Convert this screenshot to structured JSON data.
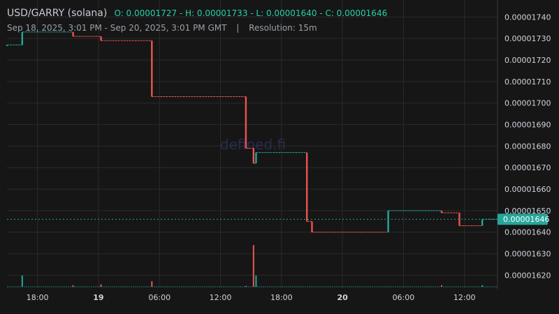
{
  "header": {
    "symbol": "USD/GARRY (solana)",
    "ohlc_text": "O: 0.00001727 - H: 0.00001733 - L: 0.00001640 - C: 0.00001646",
    "range": "Sep 18, 2025, 3:01 PM - Sep 20, 2025, 3:01 PM GMT",
    "separator": "|",
    "resolution": "Resolution: 15m"
  },
  "watermark": "defined.fi",
  "colors": {
    "background": "#161616",
    "grid": "#2b2b2b",
    "up": "#26a69a",
    "down": "#ef5350",
    "price_label_bg": "#26a69a",
    "text": "#d1d4dc"
  },
  "chart_data": {
    "type": "candlestick",
    "y_ticks": [
      "0.00001740",
      "0.00001730",
      "0.00001720",
      "0.00001710",
      "0.00001700",
      "0.00001690",
      "0.00001680",
      "0.00001670",
      "0.00001660",
      "0.00001650",
      "0.00001640",
      "0.00001630",
      "0.00001620"
    ],
    "ylim": [
      1.6143e-05,
      1.7453e-05
    ],
    "x_ticks": [
      {
        "label": "18:00",
        "hour": 18,
        "bold": false
      },
      {
        "label": "19",
        "hour": 24,
        "bold": true
      },
      {
        "label": "06:00",
        "hour": 30,
        "bold": false
      },
      {
        "label": "12:00",
        "hour": 36,
        "bold": false
      },
      {
        "label": "18:00",
        "hour": 42,
        "bold": false
      },
      {
        "label": "20",
        "hour": 48,
        "bold": true
      },
      {
        "label": "06:00",
        "hour": 54,
        "bold": false
      },
      {
        "label": "12:00",
        "hour": 60,
        "bold": false
      }
    ],
    "x_range_hours_from_sep18_midnight": [
      15.0,
      63.25
    ],
    "last_price": "0.00001646",
    "last_price_value": 1.646e-05,
    "candles": [
      {
        "t": 15.0,
        "o": 1.727e-05,
        "c": 1.727e-05,
        "dir": "up"
      },
      {
        "t": 16.5,
        "o": 1.727e-05,
        "c": 1.733e-05,
        "dir": "up"
      },
      {
        "t": 21.5,
        "o": 1.733e-05,
        "c": 1.731e-05,
        "dir": "down"
      },
      {
        "t": 24.25,
        "o": 1.731e-05,
        "c": 1.729e-05,
        "dir": "down"
      },
      {
        "t": 29.25,
        "o": 1.729e-05,
        "c": 1.703e-05,
        "dir": "down"
      },
      {
        "t": 38.5,
        "o": 1.703e-05,
        "c": 1.679e-05,
        "dir": "down"
      },
      {
        "t": 39.25,
        "o": 1.679e-05,
        "c": 1.672e-05,
        "dir": "down"
      },
      {
        "t": 39.5,
        "o": 1.672e-05,
        "c": 1.677e-05,
        "dir": "up"
      },
      {
        "t": 44.5,
        "o": 1.677e-05,
        "c": 1.645e-05,
        "dir": "down"
      },
      {
        "t": 45.0,
        "o": 1.645e-05,
        "c": 1.64e-05,
        "dir": "down"
      },
      {
        "t": 52.5,
        "o": 1.64e-05,
        "c": 1.65e-05,
        "dir": "up"
      },
      {
        "t": 57.75,
        "o": 1.65e-05,
        "c": 1.649e-05,
        "dir": "down"
      },
      {
        "t": 59.5,
        "o": 1.649e-05,
        "c": 1.643e-05,
        "dir": "down"
      },
      {
        "t": 61.75,
        "o": 1.643e-05,
        "c": 1.646e-05,
        "dir": "up"
      }
    ],
    "volume": [
      {
        "t": 16.5,
        "v": 14,
        "dir": "up"
      },
      {
        "t": 21.5,
        "v": 2,
        "dir": "down"
      },
      {
        "t": 24.25,
        "v": 3,
        "dir": "down"
      },
      {
        "t": 29.25,
        "v": 7,
        "dir": "down"
      },
      {
        "t": 38.5,
        "v": 1,
        "dir": "down"
      },
      {
        "t": 39.25,
        "v": 52,
        "dir": "down"
      },
      {
        "t": 39.5,
        "v": 14,
        "dir": "up"
      },
      {
        "t": 57.75,
        "v": 2,
        "dir": "down"
      },
      {
        "t": 61.75,
        "v": 2,
        "dir": "up"
      }
    ]
  }
}
